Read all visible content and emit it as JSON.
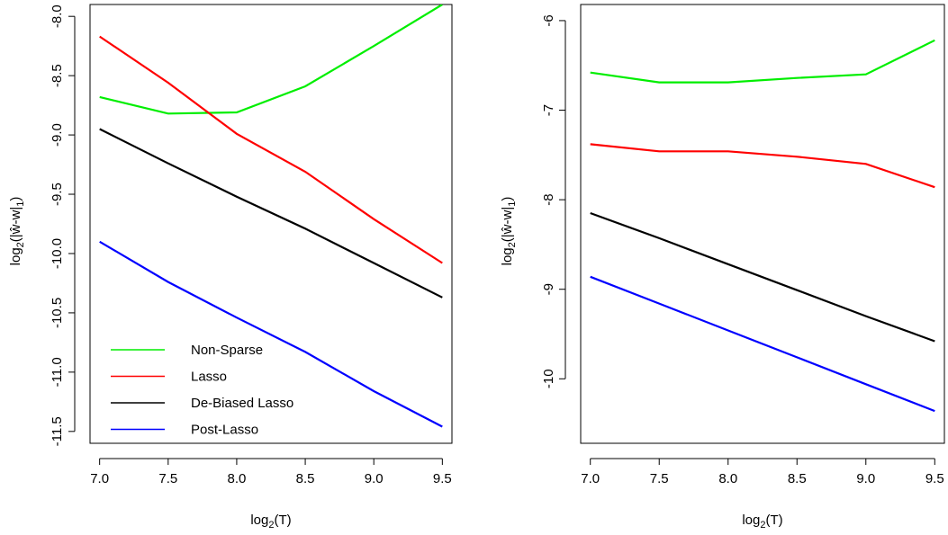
{
  "chart_data": [
    {
      "type": "line",
      "xlabel": "log2(T)",
      "ylabel": "log2(|ŵ-w|1)",
      "xlim": [
        6.93,
        9.57
      ],
      "ylim": [
        -11.6,
        -7.9
      ],
      "xticks": [
        "7.0",
        "7.5",
        "8.0",
        "8.5",
        "9.0",
        "9.5"
      ],
      "yticks": [
        "-8.0",
        "-8.5",
        "-9.0",
        "-9.5",
        "-10.0",
        "-10.5",
        "-11.0",
        "-11.5"
      ],
      "x": [
        7.0,
        7.5,
        8.0,
        8.5,
        9.0,
        9.5
      ],
      "series": [
        {
          "name": "Non-Sparse",
          "color": "#00ee00",
          "values": [
            -8.68,
            -8.82,
            -8.81,
            -8.59,
            -8.25,
            -7.9
          ]
        },
        {
          "name": "Lasso",
          "color": "#ff0000",
          "values": [
            -8.17,
            -8.56,
            -8.99,
            -9.31,
            -9.71,
            -10.08
          ]
        },
        {
          "name": "De-Biased Lasso",
          "color": "#000000",
          "values": [
            -8.95,
            -9.24,
            -9.52,
            -9.79,
            -10.08,
            -10.37
          ]
        },
        {
          "name": "Post-Lasso",
          "color": "#0000ff",
          "values": [
            -9.9,
            -10.24,
            -10.54,
            -10.83,
            -11.16,
            -11.46
          ]
        }
      ],
      "legend": {
        "position": "bottom-left",
        "entries": [
          "Non-Sparse",
          "Lasso",
          "De-Biased Lasso",
          "Post-Lasso"
        ]
      }
    },
    {
      "type": "line",
      "xlabel": "log2(T)",
      "ylabel": "log2(|ŵ-w|1)",
      "xlim": [
        6.93,
        9.57
      ],
      "ylim": [
        -10.72,
        -5.82
      ],
      "xticks": [
        "7.0",
        "7.5",
        "8.0",
        "8.5",
        "9.0",
        "9.5"
      ],
      "yticks": [
        "-6",
        "-7",
        "-8",
        "-9",
        "-10"
      ],
      "x": [
        7.0,
        7.5,
        8.0,
        8.5,
        9.0,
        9.5
      ],
      "series": [
        {
          "name": "Non-Sparse",
          "color": "#00ee00",
          "values": [
            -6.58,
            -6.69,
            -6.69,
            -6.64,
            -6.6,
            -6.22
          ]
        },
        {
          "name": "Lasso",
          "color": "#ff0000",
          "values": [
            -7.38,
            -7.46,
            -7.46,
            -7.52,
            -7.6,
            -7.86
          ]
        },
        {
          "name": "De-Biased Lasso",
          "color": "#000000",
          "values": [
            -8.15,
            -8.43,
            -8.72,
            -9.01,
            -9.3,
            -9.58
          ]
        },
        {
          "name": "Post-Lasso",
          "color": "#0000ff",
          "values": [
            -8.86,
            -9.16,
            -9.46,
            -9.76,
            -10.06,
            -10.36
          ]
        }
      ]
    }
  ]
}
